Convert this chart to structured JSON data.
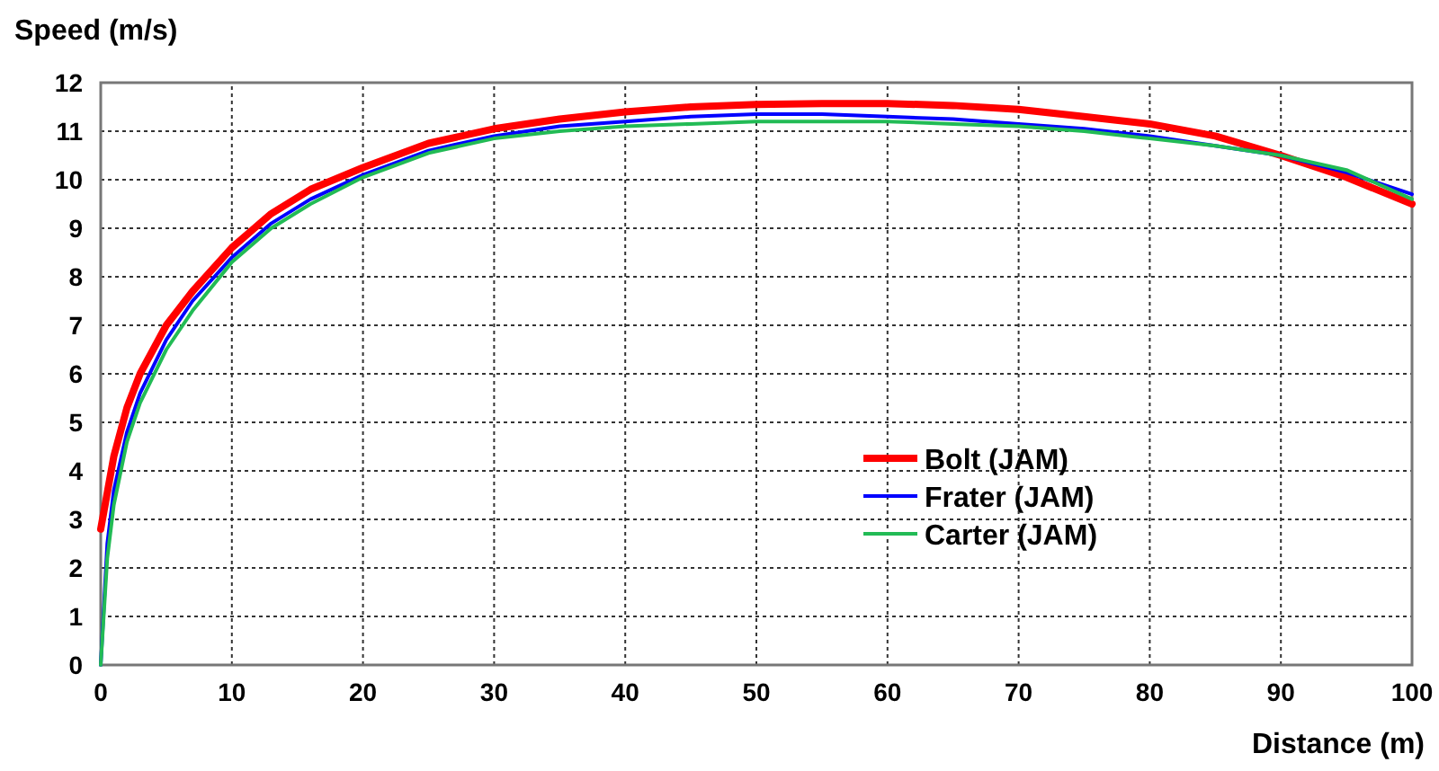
{
  "chart_data": {
    "type": "line",
    "xlabel": "Distance (m)",
    "ylabel": "Speed (m/s)",
    "xlim": [
      0,
      100
    ],
    "xticks": [
      0,
      10,
      20,
      30,
      40,
      50,
      60,
      70,
      80,
      90,
      100
    ],
    "ylim": [
      0,
      12
    ],
    "yticks": [
      0,
      1,
      2,
      3,
      4,
      5,
      6,
      7,
      8,
      9,
      10,
      11,
      12
    ],
    "grid": true,
    "legend": "right",
    "marker": "none",
    "line_style": "solid",
    "series": [
      {
        "name": "Bolt (JAM)",
        "color": "#ff0000",
        "x": [
          0,
          1,
          2,
          3,
          5,
          7,
          10,
          13,
          16,
          20,
          25,
          30,
          35,
          40,
          45,
          50,
          55,
          60,
          65,
          70,
          75,
          80,
          85,
          90,
          95,
          100
        ],
        "values": [
          2.8,
          4.3,
          5.3,
          6.0,
          7.0,
          7.7,
          8.6,
          9.3,
          9.8,
          10.25,
          10.75,
          11.05,
          11.25,
          11.4,
          11.5,
          11.55,
          11.57,
          11.57,
          11.53,
          11.45,
          11.3,
          11.15,
          10.9,
          10.5,
          10.05,
          9.5
        ]
      },
      {
        "name": "Frater (JAM)",
        "color": "#0000ff",
        "x": [
          0,
          0.5,
          1,
          2,
          3,
          5,
          7,
          10,
          13,
          16,
          20,
          25,
          30,
          35,
          40,
          45,
          50,
          55,
          60,
          65,
          70,
          75,
          80,
          85,
          90,
          95,
          100
        ],
        "values": [
          0,
          2.5,
          3.6,
          4.8,
          5.6,
          6.7,
          7.5,
          8.4,
          9.1,
          9.6,
          10.1,
          10.6,
          10.9,
          11.1,
          11.2,
          11.3,
          11.35,
          11.35,
          11.3,
          11.25,
          11.15,
          11.05,
          10.9,
          10.7,
          10.5,
          10.15,
          9.7
        ]
      },
      {
        "name": "Carter (JAM)",
        "color": "#22bb55",
        "x": [
          0,
          0.5,
          1,
          2,
          3,
          5,
          7,
          10,
          13,
          16,
          20,
          25,
          30,
          35,
          40,
          45,
          50,
          55,
          60,
          65,
          70,
          75,
          80,
          85,
          90,
          95,
          100
        ],
        "values": [
          0,
          2.2,
          3.3,
          4.6,
          5.4,
          6.5,
          7.3,
          8.3,
          9.0,
          9.5,
          10.05,
          10.55,
          10.85,
          11.0,
          11.1,
          11.15,
          11.2,
          11.2,
          11.2,
          11.15,
          11.1,
          11.0,
          10.85,
          10.7,
          10.5,
          10.2,
          9.6
        ]
      }
    ]
  }
}
